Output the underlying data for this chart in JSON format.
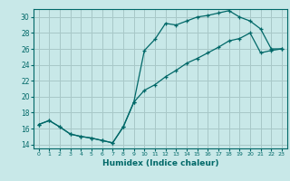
{
  "xlabel": "Humidex (Indice chaleur)",
  "bg_color": "#c8e8e8",
  "grid_color": "#a8c8c8",
  "line_color": "#006868",
  "xlim": [
    -0.5,
    23.5
  ],
  "ylim": [
    13.5,
    31
  ],
  "xticks": [
    0,
    1,
    2,
    3,
    4,
    5,
    6,
    7,
    8,
    9,
    10,
    11,
    12,
    13,
    14,
    15,
    16,
    17,
    18,
    19,
    20,
    21,
    22,
    23
  ],
  "yticks": [
    14,
    16,
    18,
    20,
    22,
    24,
    26,
    28,
    30
  ],
  "line1_x": [
    0,
    1,
    2,
    3,
    4,
    5,
    6,
    7,
    8,
    9,
    10,
    11,
    12,
    13,
    14,
    15,
    16,
    17,
    18,
    19,
    20,
    21,
    22,
    23
  ],
  "line1_y": [
    16.5,
    17.0,
    16.2,
    15.3,
    15.0,
    14.8,
    14.5,
    14.2,
    16.2,
    19.3,
    25.8,
    27.2,
    29.2,
    29.0,
    29.5,
    30.0,
    30.2,
    30.5,
    30.8,
    30.0,
    29.5,
    28.5,
    26.0,
    26.0
  ],
  "line2_x": [
    0,
    1,
    2,
    3,
    4,
    5,
    6,
    7,
    8,
    9,
    10,
    11,
    12,
    13,
    14,
    15,
    16,
    17,
    18,
    19,
    20,
    21,
    22,
    23
  ],
  "line2_y": [
    16.5,
    17.0,
    16.2,
    15.3,
    15.0,
    14.8,
    14.5,
    14.2,
    16.2,
    19.3,
    20.8,
    21.5,
    22.5,
    23.3,
    24.2,
    24.8,
    25.5,
    26.2,
    27.0,
    27.3,
    28.0,
    25.5,
    25.8,
    26.0
  ]
}
